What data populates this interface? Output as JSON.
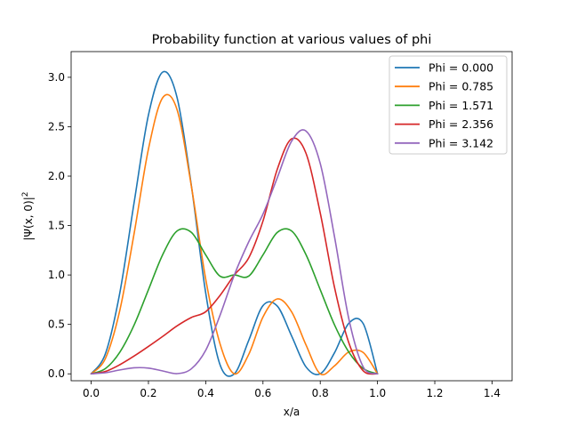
{
  "chart_data": {
    "type": "line",
    "title": "Probability function at various values of phi",
    "xlabel": "x/a",
    "ylabel": "|Ψ(x, 0)|²",
    "ylabel_parts": {
      "main": "|Ψ(x, 0)|",
      "sup": "2"
    },
    "xlim": [
      -0.07,
      1.47
    ],
    "ylim": [
      -0.07,
      3.26
    ],
    "x_ticks": [
      0.0,
      0.2,
      0.4,
      0.6,
      0.8,
      1.0,
      1.2,
      1.4
    ],
    "x_tick_labels": [
      "0.0",
      "0.2",
      "0.4",
      "0.6",
      "0.8",
      "1.0",
      "1.2",
      "1.4"
    ],
    "y_ticks": [
      0.0,
      0.5,
      1.0,
      1.5,
      2.0,
      2.5,
      3.0
    ],
    "y_tick_labels": [
      "0.0",
      "0.5",
      "1.0",
      "1.5",
      "2.0",
      "2.5",
      "3.0"
    ],
    "grid": false,
    "legend_position": "top-right",
    "x": [
      0.0,
      0.05,
      0.1,
      0.15,
      0.2,
      0.25,
      0.3,
      0.35,
      0.4,
      0.45,
      0.5,
      0.55,
      0.6,
      0.65,
      0.7,
      0.75,
      0.8,
      0.85,
      0.9,
      0.95,
      1.0
    ],
    "series": [
      {
        "name": "Phi = 0.000",
        "color": "#1f77b4",
        "values": [
          0.0,
          0.205,
          0.818,
          1.733,
          2.618,
          3.053,
          2.795,
          1.903,
          0.818,
          0.092,
          0.0,
          0.337,
          0.69,
          0.685,
          0.383,
          0.071,
          0.0,
          0.214,
          0.512,
          0.508,
          0.0
        ]
      },
      {
        "name": "Phi = 0.785",
        "color": "#ff7f0e",
        "values": [
          0.0,
          0.157,
          0.642,
          1.42,
          2.274,
          2.794,
          2.672,
          1.897,
          0.958,
          0.304,
          0.0,
          0.195,
          0.575,
          0.758,
          0.627,
          0.294,
          0.0,
          0.081,
          0.222,
          0.216,
          0.0
        ]
      },
      {
        "name": "Phi = 1.571",
        "color": "#2ca02c",
        "values": [
          0.0,
          0.054,
          0.219,
          0.494,
          0.851,
          1.207,
          1.445,
          1.431,
          1.203,
          0.988,
          1.0,
          0.988,
          1.203,
          1.431,
          1.445,
          1.207,
          0.851,
          0.494,
          0.219,
          0.054,
          0.0
        ]
      },
      {
        "name": "Phi = 2.356",
        "color": "#d62728",
        "values": [
          0.0,
          0.024,
          0.092,
          0.18,
          0.277,
          0.379,
          0.485,
          0.57,
          0.628,
          0.793,
          1.0,
          1.172,
          1.546,
          2.07,
          2.377,
          2.233,
          1.627,
          0.872,
          0.312,
          0.031,
          0.0
        ]
      },
      {
        "name": "Phi = 3.142",
        "color": "#9467bd",
        "values": [
          0.0,
          0.011,
          0.039,
          0.061,
          0.058,
          0.029,
          0.002,
          0.051,
          0.238,
          0.592,
          1.0,
          1.334,
          1.616,
          1.984,
          2.354,
          2.457,
          2.128,
          1.384,
          0.554,
          0.07,
          0.0
        ]
      }
    ]
  }
}
